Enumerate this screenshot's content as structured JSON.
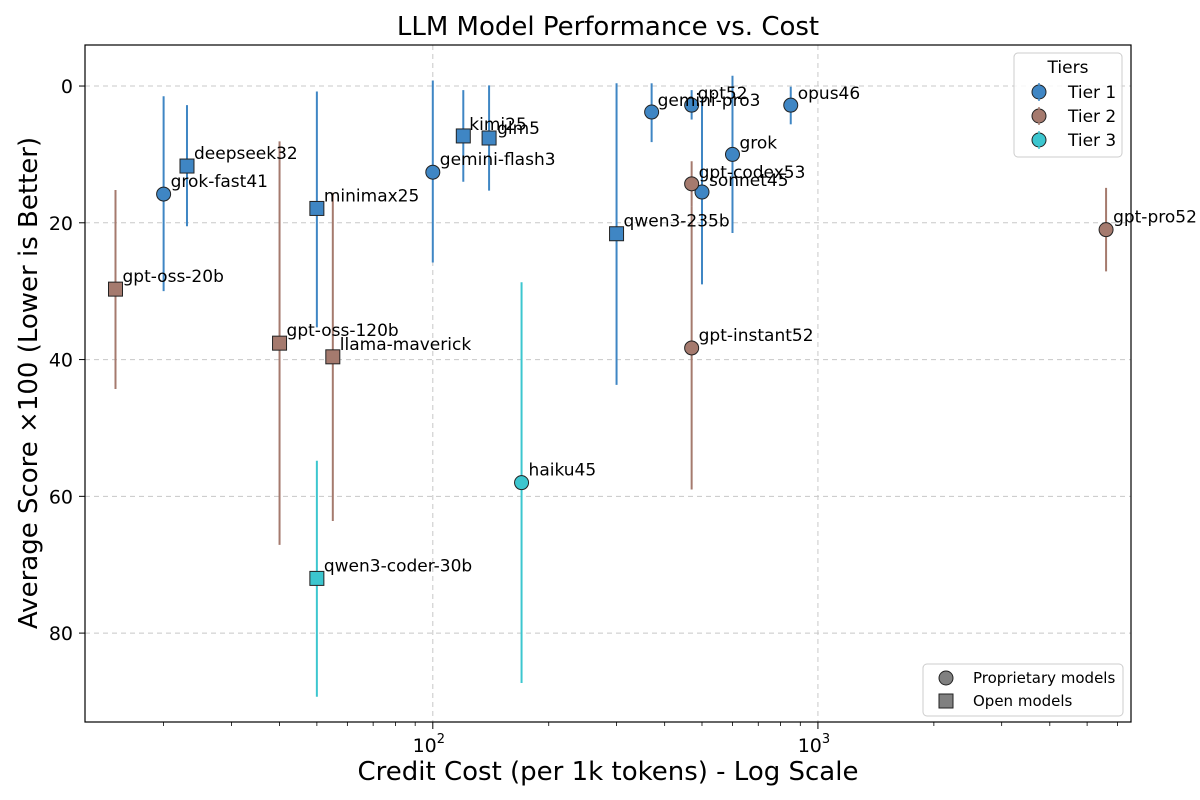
{
  "colors": {
    "tier1": "#3f86c4",
    "tier2": "#a57a6e",
    "tier3": "#3cc6cf",
    "neutral": "#808080"
  },
  "chart_data": {
    "type": "scatter",
    "title": "LLM Model Performance vs. Cost",
    "xlabel": "Credit Cost (per 1k tokens) - Log Scale",
    "ylabel": "Average Score ×100 (Lower is Better)",
    "x_scale": "log",
    "xlim": [
      12.5,
      6500
    ],
    "ylim": [
      93,
      -6
    ],
    "y_inverted": true,
    "grid": true,
    "x_ticks": [
      {
        "value": 100,
        "base": "10",
        "exp": "2"
      },
      {
        "value": 1000,
        "base": "10",
        "exp": "3"
      }
    ],
    "y_ticks": [
      {
        "value": 0,
        "label": "0"
      },
      {
        "value": 20,
        "label": "20"
      },
      {
        "value": 40,
        "label": "40"
      },
      {
        "value": 60,
        "label": "60"
      },
      {
        "value": 80,
        "label": "80"
      }
    ],
    "legend_tiers": {
      "title": "Tiers",
      "position": "top-right",
      "entries": [
        {
          "label": "Tier 1",
          "tier": 1
        },
        {
          "label": "Tier 2",
          "tier": 2
        },
        {
          "label": "Tier 3",
          "tier": 3
        }
      ]
    },
    "legend_types": {
      "position": "bottom-right",
      "entries": [
        {
          "label": "Proprietary models",
          "shape": "circle"
        },
        {
          "label": "Open models",
          "shape": "square"
        }
      ]
    },
    "points": [
      {
        "name": "grok-fast41",
        "x": 20,
        "y": 15.8,
        "err_low": 1.5,
        "err_high": 30,
        "tier": 1,
        "shape": "circle"
      },
      {
        "name": "deepseek32",
        "x": 23,
        "y": 11.7,
        "err_low": 2.8,
        "err_high": 20.5,
        "tier": 1,
        "shape": "square"
      },
      {
        "name": "minimax25",
        "x": 50,
        "y": 17.9,
        "err_low": 0.8,
        "err_high": 35.3,
        "tier": 1,
        "shape": "square"
      },
      {
        "name": "gemini-flash3",
        "x": 100,
        "y": 12.6,
        "err_low": -0.8,
        "err_high": 25.8,
        "tier": 1,
        "shape": "circle"
      },
      {
        "name": "kimi25",
        "x": 120,
        "y": 7.3,
        "err_low": 0.6,
        "err_high": 14.0,
        "tier": 1,
        "shape": "square"
      },
      {
        "name": "glm5",
        "x": 140,
        "y": 7.6,
        "err_low": -0.1,
        "err_high": 15.3,
        "tier": 1,
        "shape": "square"
      },
      {
        "name": "qwen3-235b",
        "x": 300,
        "y": 21.6,
        "err_low": -0.4,
        "err_high": 43.7,
        "tier": 1,
        "shape": "square"
      },
      {
        "name": "gemini-pro3",
        "x": 370,
        "y": 3.8,
        "err_low": -0.4,
        "err_high": 8.2,
        "tier": 1,
        "shape": "circle"
      },
      {
        "name": "gpt52",
        "x": 470,
        "y": 2.8,
        "err_low": 0.6,
        "err_high": 4.9,
        "tier": 1,
        "shape": "circle"
      },
      {
        "name": "sonnet45",
        "x": 500,
        "y": 15.5,
        "err_low": 2.0,
        "err_high": 29.0,
        "tier": 1,
        "shape": "circle"
      },
      {
        "name": "grok",
        "x": 600,
        "y": 10.0,
        "err_low": -1.5,
        "err_high": 21.5,
        "tier": 1,
        "shape": "circle"
      },
      {
        "name": "opus46",
        "x": 850,
        "y": 2.8,
        "err_low": 0.1,
        "err_high": 5.6,
        "tier": 1,
        "shape": "circle"
      },
      {
        "name": "gpt-oss-20b",
        "x": 15,
        "y": 29.7,
        "err_low": 15.2,
        "err_high": 44.3,
        "tier": 2,
        "shape": "square"
      },
      {
        "name": "gpt-oss-120b",
        "x": 40,
        "y": 37.6,
        "err_low": 8.1,
        "err_high": 67.1,
        "tier": 2,
        "shape": "square"
      },
      {
        "name": "llama-maverick",
        "x": 55,
        "y": 39.6,
        "err_low": 15.6,
        "err_high": 63.6,
        "tier": 2,
        "shape": "square"
      },
      {
        "name": "gpt-codex53",
        "x": 470,
        "y": 14.3,
        "err_low": 11.0,
        "err_high": 17.6,
        "tier": 2,
        "shape": "circle"
      },
      {
        "name": "gpt-instant52",
        "x": 470,
        "y": 38.3,
        "err_low": 17.6,
        "err_high": 59.0,
        "tier": 2,
        "shape": "circle"
      },
      {
        "name": "gpt-pro52",
        "x": 5600,
        "y": 21.0,
        "err_low": 14.9,
        "err_high": 27.1,
        "tier": 2,
        "shape": "circle"
      },
      {
        "name": "haiku45",
        "x": 170,
        "y": 58.0,
        "err_low": 28.7,
        "err_high": 87.3,
        "tier": 3,
        "shape": "circle"
      },
      {
        "name": "qwen3-coder-30b",
        "x": 50,
        "y": 72.0,
        "err_low": 54.8,
        "err_high": 89.3,
        "tier": 3,
        "shape": "square"
      }
    ]
  }
}
